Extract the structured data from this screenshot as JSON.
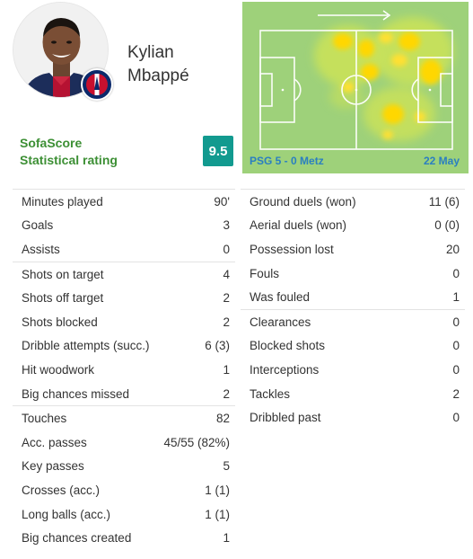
{
  "player": {
    "first_name": "Kylian",
    "last_name": "Mbappé"
  },
  "rating": {
    "label_line1": "SofaScore",
    "label_line2": "Statistical rating",
    "value": "9.5",
    "badge_color": "#129a8f"
  },
  "heatmap": {
    "match": "PSG 5 - 0 Metz",
    "date": "22 May",
    "attack_direction_icon": "arrow-right-icon"
  },
  "left_groups": [
    [
      {
        "label": "Minutes played",
        "value": "90'"
      },
      {
        "label": "Goals",
        "value": "3"
      },
      {
        "label": "Assists",
        "value": "0"
      }
    ],
    [
      {
        "label": "Shots on target",
        "value": "4"
      },
      {
        "label": "Shots off target",
        "value": "2"
      },
      {
        "label": "Shots blocked",
        "value": "2"
      },
      {
        "label": "Dribble attempts (succ.)",
        "value": "6 (3)"
      },
      {
        "label": "Hit woodwork",
        "value": "1"
      },
      {
        "label": "Big chances missed",
        "value": "2"
      }
    ],
    [
      {
        "label": "Touches",
        "value": "82"
      },
      {
        "label": "Acc. passes",
        "value": "45/55 (82%)"
      },
      {
        "label": "Key passes",
        "value": "5"
      },
      {
        "label": "Crosses (acc.)",
        "value": "1 (1)"
      },
      {
        "label": "Long balls (acc.)",
        "value": "1 (1)"
      },
      {
        "label": "Big chances created",
        "value": "1"
      }
    ]
  ],
  "right_groups": [
    [
      {
        "label": "Ground duels (won)",
        "value": "11 (6)"
      },
      {
        "label": "Aerial duels (won)",
        "value": "0 (0)"
      },
      {
        "label": "Possession lost",
        "value": "20"
      },
      {
        "label": "Fouls",
        "value": "0"
      },
      {
        "label": "Was fouled",
        "value": "1"
      }
    ],
    [
      {
        "label": "Clearances",
        "value": "0"
      },
      {
        "label": "Blocked shots",
        "value": "0"
      },
      {
        "label": "Interceptions",
        "value": "0"
      },
      {
        "label": "Tackles",
        "value": "2"
      },
      {
        "label": "Dribbled past",
        "value": "0"
      }
    ]
  ]
}
